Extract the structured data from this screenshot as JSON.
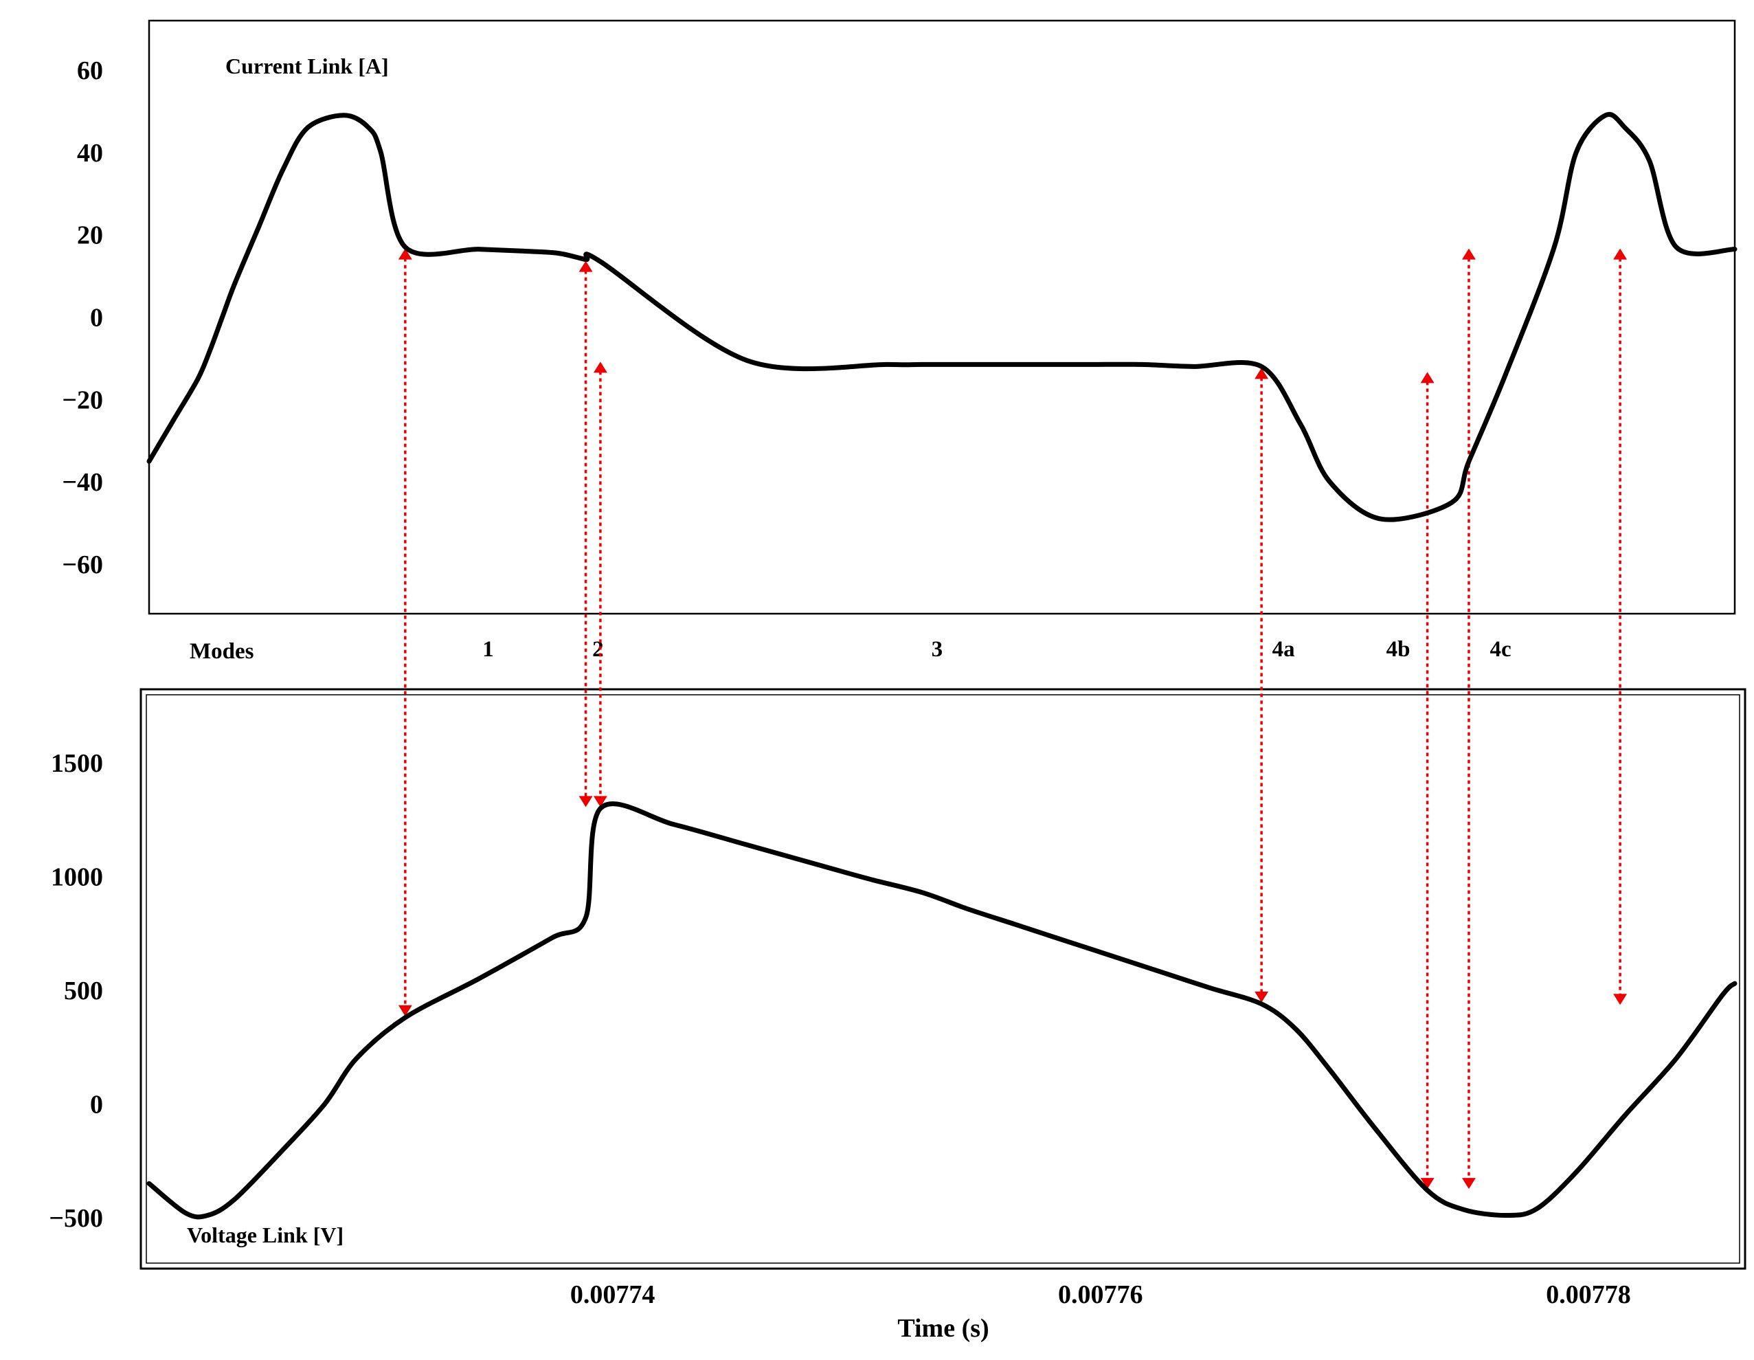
{
  "chart_data": [
    {
      "type": "line",
      "title": "Current Link [A]",
      "xlabel": "",
      "ylabel": "",
      "xlim": [
        0.007721,
        0.007786
      ],
      "ylim": [
        -72,
        72
      ],
      "yticks": [
        60,
        40,
        20,
        0,
        -20,
        -40,
        -60
      ],
      "ytick_labels": [
        "60",
        "40",
        "20",
        "0",
        "−20",
        "−40",
        "−60"
      ],
      "grid": false,
      "series": [
        {
          "x": [
            0.007721,
            0.007722,
            0.007723,
            0.0077235,
            0.007724,
            0.0077245,
            0.0077255,
            0.0077265,
            0.0077275,
            0.007729,
            0.00773,
            0.0077305,
            0.0077315,
            0.0077345,
            0.0077365,
            0.0077378,
            0.0077389,
            0.0077395,
            0.0077455,
            0.0077513,
            0.0077527,
            0.0077555,
            0.0077585,
            0.0077597,
            0.0077617,
            0.0077638,
            0.0077666,
            0.0077682,
            0.0077694,
            0.0077715,
            0.0077744,
            0.0077751,
            0.0077766,
            0.0077786,
            0.0077795,
            0.0077807,
            0.0077815,
            0.0077825,
            0.0077836,
            0.007786
          ],
          "y": [
            -35,
            -25,
            -15,
            -8,
            0,
            8,
            22,
            36,
            46,
            49,
            46,
            40,
            17,
            16.5,
            16,
            15.5,
            14,
            13.5,
            -10.5,
            -11.5,
            -11.5,
            -11.5,
            -11.5,
            -11.5,
            -11.5,
            -12,
            -12,
            -26,
            -40,
            -49,
            -45,
            -35,
            -14,
            17,
            40,
            49,
            46,
            38,
            17,
            16.5
          ]
        }
      ]
    },
    {
      "type": "line",
      "title": "Voltage  Link [V]",
      "xlabel": "Time (s)",
      "ylabel": "",
      "xlim": [
        0.007721,
        0.007786
      ],
      "ylim": [
        -700,
        1800
      ],
      "xticks": [
        0.00774,
        0.00776,
        0.00778
      ],
      "xtick_labels": [
        "0.00774",
        "0.00776",
        "0.00778"
      ],
      "yticks": [
        1500,
        1000,
        500,
        0,
        -500
      ],
      "ytick_labels": [
        "1500",
        "1000",
        "500",
        "0",
        "−500"
      ],
      "grid": false,
      "series": [
        {
          "x": [
            0.007721,
            0.0077225,
            0.0077234,
            0.0077245,
            0.0077265,
            0.0077282,
            0.0077295,
            0.0077315,
            0.0077345,
            0.0077375,
            0.0077389,
            0.0077395,
            0.0077425,
            0.0077455,
            0.0077485,
            0.0077505,
            0.0077527,
            0.0077545,
            0.0077565,
            0.0077585,
            0.0077605,
            0.0077625,
            0.0077645,
            0.0077666,
            0.007768,
            0.0077694,
            0.0077712,
            0.0077734,
            0.0077749,
            0.0077767,
            0.0077779,
            0.0077795,
            0.0077815,
            0.0077836,
            0.0077855,
            0.007786
          ],
          "y": [
            -350,
            -480,
            -490,
            -420,
            -200,
            0,
            200,
            380,
            550,
            730,
            820,
            1300,
            1230,
            1140,
            1050,
            990,
            930,
            860,
            790,
            720,
            650,
            580,
            510,
            440,
            330,
            150,
            -100,
            -380,
            -465,
            -490,
            -460,
            -300,
            -50,
            200,
            480,
            530
          ]
        }
      ]
    }
  ],
  "modes": {
    "label": "Modes",
    "items": [
      {
        "label": "1",
        "at": 0.0077349
      },
      {
        "label": "2",
        "at": 0.0077394
      },
      {
        "label": "3",
        "at": 0.0077533
      },
      {
        "label": "4a",
        "at": 0.0077675
      },
      {
        "label": "4b",
        "at": 0.0077722
      },
      {
        "label": "4c",
        "at": 0.0077764
      }
    ]
  },
  "markers": [
    {
      "x": 0.0077315,
      "y_current": 17,
      "y_voltage": 380,
      "orient": "up-down"
    },
    {
      "x": 0.0077389,
      "y_current": 14,
      "y_voltage": 1300,
      "orient": "up-down"
    },
    {
      "x": 0.0077395,
      "y_current": -10.5,
      "y_voltage": 1300,
      "orient": "up-down"
    },
    {
      "x": 0.0077666,
      "y_current": -12,
      "y_voltage": 440,
      "orient": "up-down"
    },
    {
      "x": 0.0077734,
      "y_current": -13,
      "y_voltage": -380,
      "orient": "up-down"
    },
    {
      "x": 0.0077751,
      "y_current": 17,
      "y_voltage": -380,
      "orient": "up-down"
    },
    {
      "x": 0.0077813,
      "y_current": 17,
      "y_voltage": 430,
      "orient": "up-down"
    }
  ],
  "colors": {
    "trace": "#000000",
    "marker": "#ee0000"
  }
}
